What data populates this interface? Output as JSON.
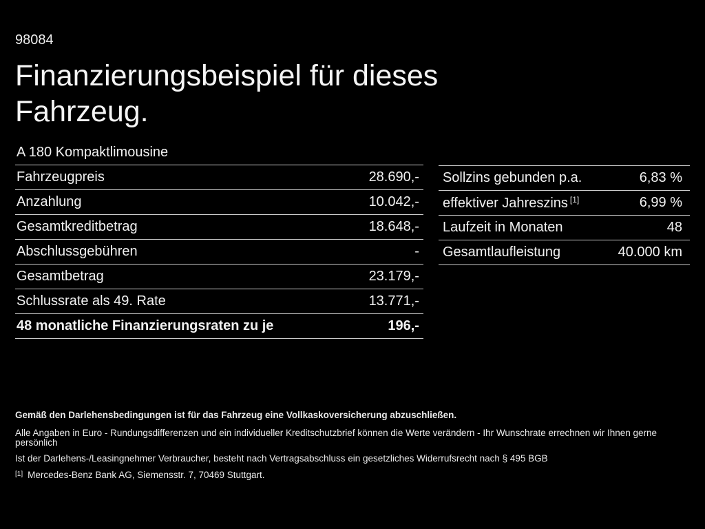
{
  "header": {
    "doc_number": "98084",
    "title": "Finanzierungsbeispiel für dieses Fahrzeug."
  },
  "vehicle_model": "A 180 Kompaktlimousine",
  "tables": {
    "left": {
      "rows": [
        {
          "label": "Fahrzeugpreis",
          "value": "28.690,-"
        },
        {
          "label": "Anzahlung",
          "value": "10.042,-"
        },
        {
          "label": "Gesamtkreditbetrag",
          "value": "18.648,-"
        },
        {
          "label": "Abschlussgebühren",
          "value": "-"
        },
        {
          "label": "Gesamtbetrag",
          "value": "23.179,-"
        },
        {
          "label": "Schlussrate als 49. Rate",
          "value": "13.771,-"
        },
        {
          "label": "48 monatliche Finanzierungsraten zu je",
          "value": "196,-"
        }
      ]
    },
    "right": {
      "rows": [
        {
          "label": "Sollzins gebunden p.a.",
          "footnote_mark": "",
          "value": "6,83 %"
        },
        {
          "label": "effektiver Jahreszins",
          "footnote_mark": "[1]",
          "value": "6,99 %"
        },
        {
          "label": "Laufzeit in Monaten",
          "footnote_mark": "",
          "value": "48"
        },
        {
          "label": "Gesamtlaufleistung",
          "footnote_mark": "",
          "value": "40.000 km"
        }
      ]
    }
  },
  "footer": {
    "line1": "Gemäß den Darlehensbedingungen ist für das Fahrzeug eine Vollkaskoversicherung abzuschließen.",
    "line2": "Alle Angaben in Euro - Rundungsdifferenzen und ein individueller Kreditschutzbrief können die Werte verändern - Ihr Wunschrate errechnen wir Ihnen gerne persönlich",
    "line3": "Ist der Darlehens-/Leasingnehmer Verbraucher, besteht nach Vertragsabschluss ein gesetzliches Widerrufsrecht nach § 495 BGB",
    "footnote_mark": "[1]",
    "footnote_text": "Mercedes-Benz Bank AG, Siemensstr. 7, 70469 Stuttgart."
  },
  "colors": {
    "background": "#000000",
    "text": "#f0f0f0",
    "divider": "#cccccc"
  }
}
